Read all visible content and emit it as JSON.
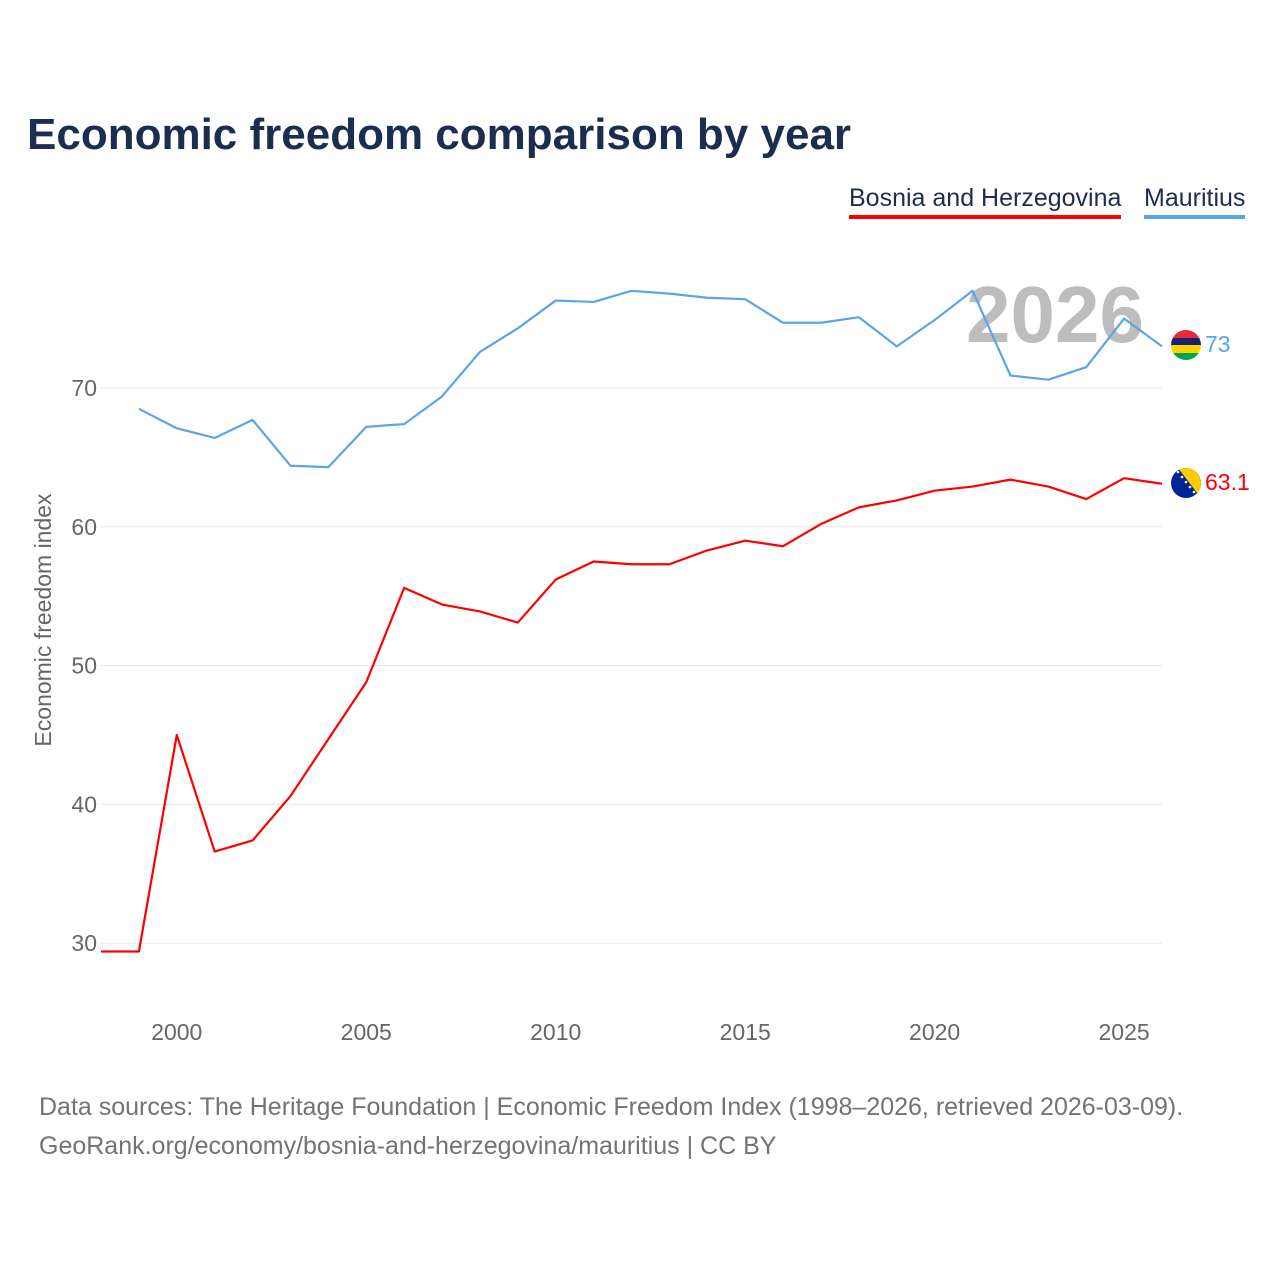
{
  "title": "Economic freedom comparison by year",
  "legend": [
    "Bosnia and Herzegovina",
    "Mauritius"
  ],
  "year_watermark": "2026",
  "source_line1": "Data sources: The Heritage Foundation | Economic Freedom Index (1998–2026, retrieved 2026-03-09).",
  "source_line2": "GeoRank.org/economy/bosnia-and-herzegovina/mauritius | CC BY",
  "chart_data": {
    "type": "line",
    "title": "Economic freedom comparison by year",
    "xlabel": "",
    "ylabel": "Economic freedom index",
    "xlim": [
      1998,
      2026
    ],
    "ylim": [
      25,
      80
    ],
    "xticks": [
      2000,
      2005,
      2010,
      2015,
      2020,
      2025
    ],
    "yticks": [
      30,
      40,
      50,
      60,
      70
    ],
    "grid": true,
    "legend_position": "top-right",
    "series": [
      {
        "name": "Bosnia and Herzegovina",
        "color": "#ff0000",
        "end_label": "63.1",
        "x": [
          1998,
          1999,
          2000,
          2001,
          2002,
          2003,
          2004,
          2005,
          2006,
          2007,
          2008,
          2009,
          2010,
          2011,
          2012,
          2013,
          2014,
          2015,
          2016,
          2017,
          2018,
          2019,
          2020,
          2021,
          2022,
          2023,
          2024,
          2025,
          2026
        ],
        "values": [
          29.4,
          29.4,
          45.0,
          36.6,
          37.4,
          40.6,
          44.7,
          48.8,
          55.6,
          54.4,
          53.9,
          53.1,
          56.2,
          57.5,
          57.3,
          57.3,
          58.3,
          59.0,
          58.6,
          60.2,
          61.4,
          61.9,
          62.6,
          62.9,
          63.4,
          62.9,
          62.0,
          63.5,
          63.1
        ]
      },
      {
        "name": "Mauritius",
        "color": "#5aa5ea",
        "end_label": "73",
        "x": [
          1999,
          2000,
          2001,
          2002,
          2003,
          2004,
          2005,
          2006,
          2007,
          2008,
          2009,
          2010,
          2011,
          2012,
          2013,
          2014,
          2015,
          2016,
          2017,
          2018,
          2019,
          2020,
          2021,
          2022,
          2023,
          2024,
          2025,
          2026
        ],
        "values": [
          68.5,
          67.1,
          66.4,
          67.7,
          64.4,
          64.3,
          67.2,
          67.4,
          69.4,
          72.6,
          74.3,
          76.3,
          76.2,
          77.0,
          76.8,
          76.5,
          76.4,
          74.7,
          74.7,
          75.1,
          73.0,
          74.9,
          77.0,
          70.9,
          70.6,
          71.5,
          75.0,
          73.0
        ]
      }
    ]
  }
}
